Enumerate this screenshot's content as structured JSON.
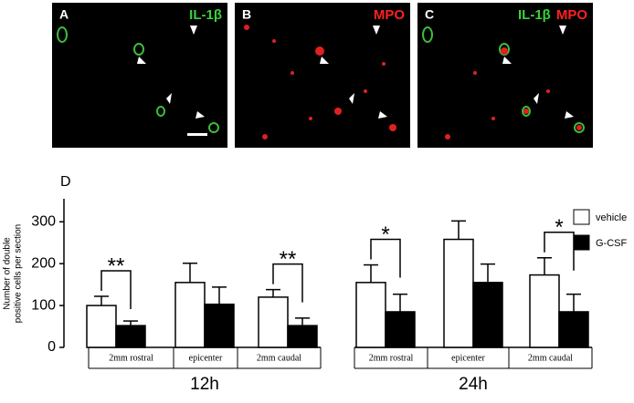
{
  "panels": [
    {
      "letter": "A",
      "labels": [
        {
          "text": "IL-1β",
          "color": "#3bd13b"
        }
      ]
    },
    {
      "letter": "B",
      "labels": [
        {
          "text": "MPO",
          "color": "#ff2020"
        }
      ]
    },
    {
      "letter": "C",
      "labels": [
        {
          "text": "IL-1β",
          "color": "#3bd13b"
        },
        {
          "text": "MPO",
          "color": "#ff2020"
        }
      ]
    }
  ],
  "chart_data": {
    "type": "bar",
    "panel_letter": "D",
    "y_label": [
      "Number of double",
      "positive cells per section"
    ],
    "categories": [
      "2mm rostral",
      "epicenter",
      "2mm caudal",
      "2mm rostral",
      "epicenter",
      "2mm caudal"
    ],
    "groups": [
      "12h",
      "24h"
    ],
    "series": [
      {
        "name": "vehicle",
        "color": "#ffffff",
        "values": [
          100,
          155,
          120,
          155,
          258,
          173
        ],
        "errors": [
          22,
          46,
          18,
          42,
          44,
          41
        ]
      },
      {
        "name": "G-CSF",
        "color": "#000000",
        "values": [
          52,
          103,
          52,
          85,
          155,
          85
        ],
        "errors": [
          11,
          41,
          18,
          42,
          44,
          42
        ]
      }
    ],
    "significance": [
      "**",
      null,
      "**",
      "*",
      null,
      "*"
    ],
    "ylim": [
      0,
      355
    ],
    "yticks": [
      0,
      100,
      200,
      300
    ]
  }
}
